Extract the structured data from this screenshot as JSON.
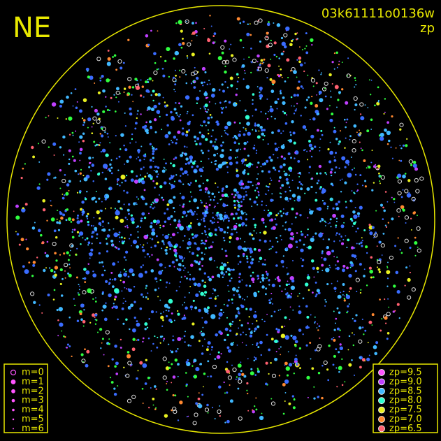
{
  "title": "NE",
  "frame_id": "03k61111o0136w",
  "mode": "zp",
  "magnitude_legend": [
    "m=0",
    "m=1",
    "m=2",
    "m=3",
    "m=4",
    "m=5",
    "m=6"
  ],
  "zp_legend": [
    {
      "label": "zp=9.5",
      "color": "#ff55ff"
    },
    {
      "label": "zp=9.0",
      "color": "#c040ff"
    },
    {
      "label": "zp=8.5",
      "color": "#40b8ff"
    },
    {
      "label": "zp=8.0",
      "color": "#30ffd0"
    },
    {
      "label": "zp=7.5",
      "color": "#e8f020"
    },
    {
      "label": "zp=7.0",
      "color": "#ff8830"
    },
    {
      "label": "zp=6.5",
      "color": "#ff6070"
    }
  ]
}
